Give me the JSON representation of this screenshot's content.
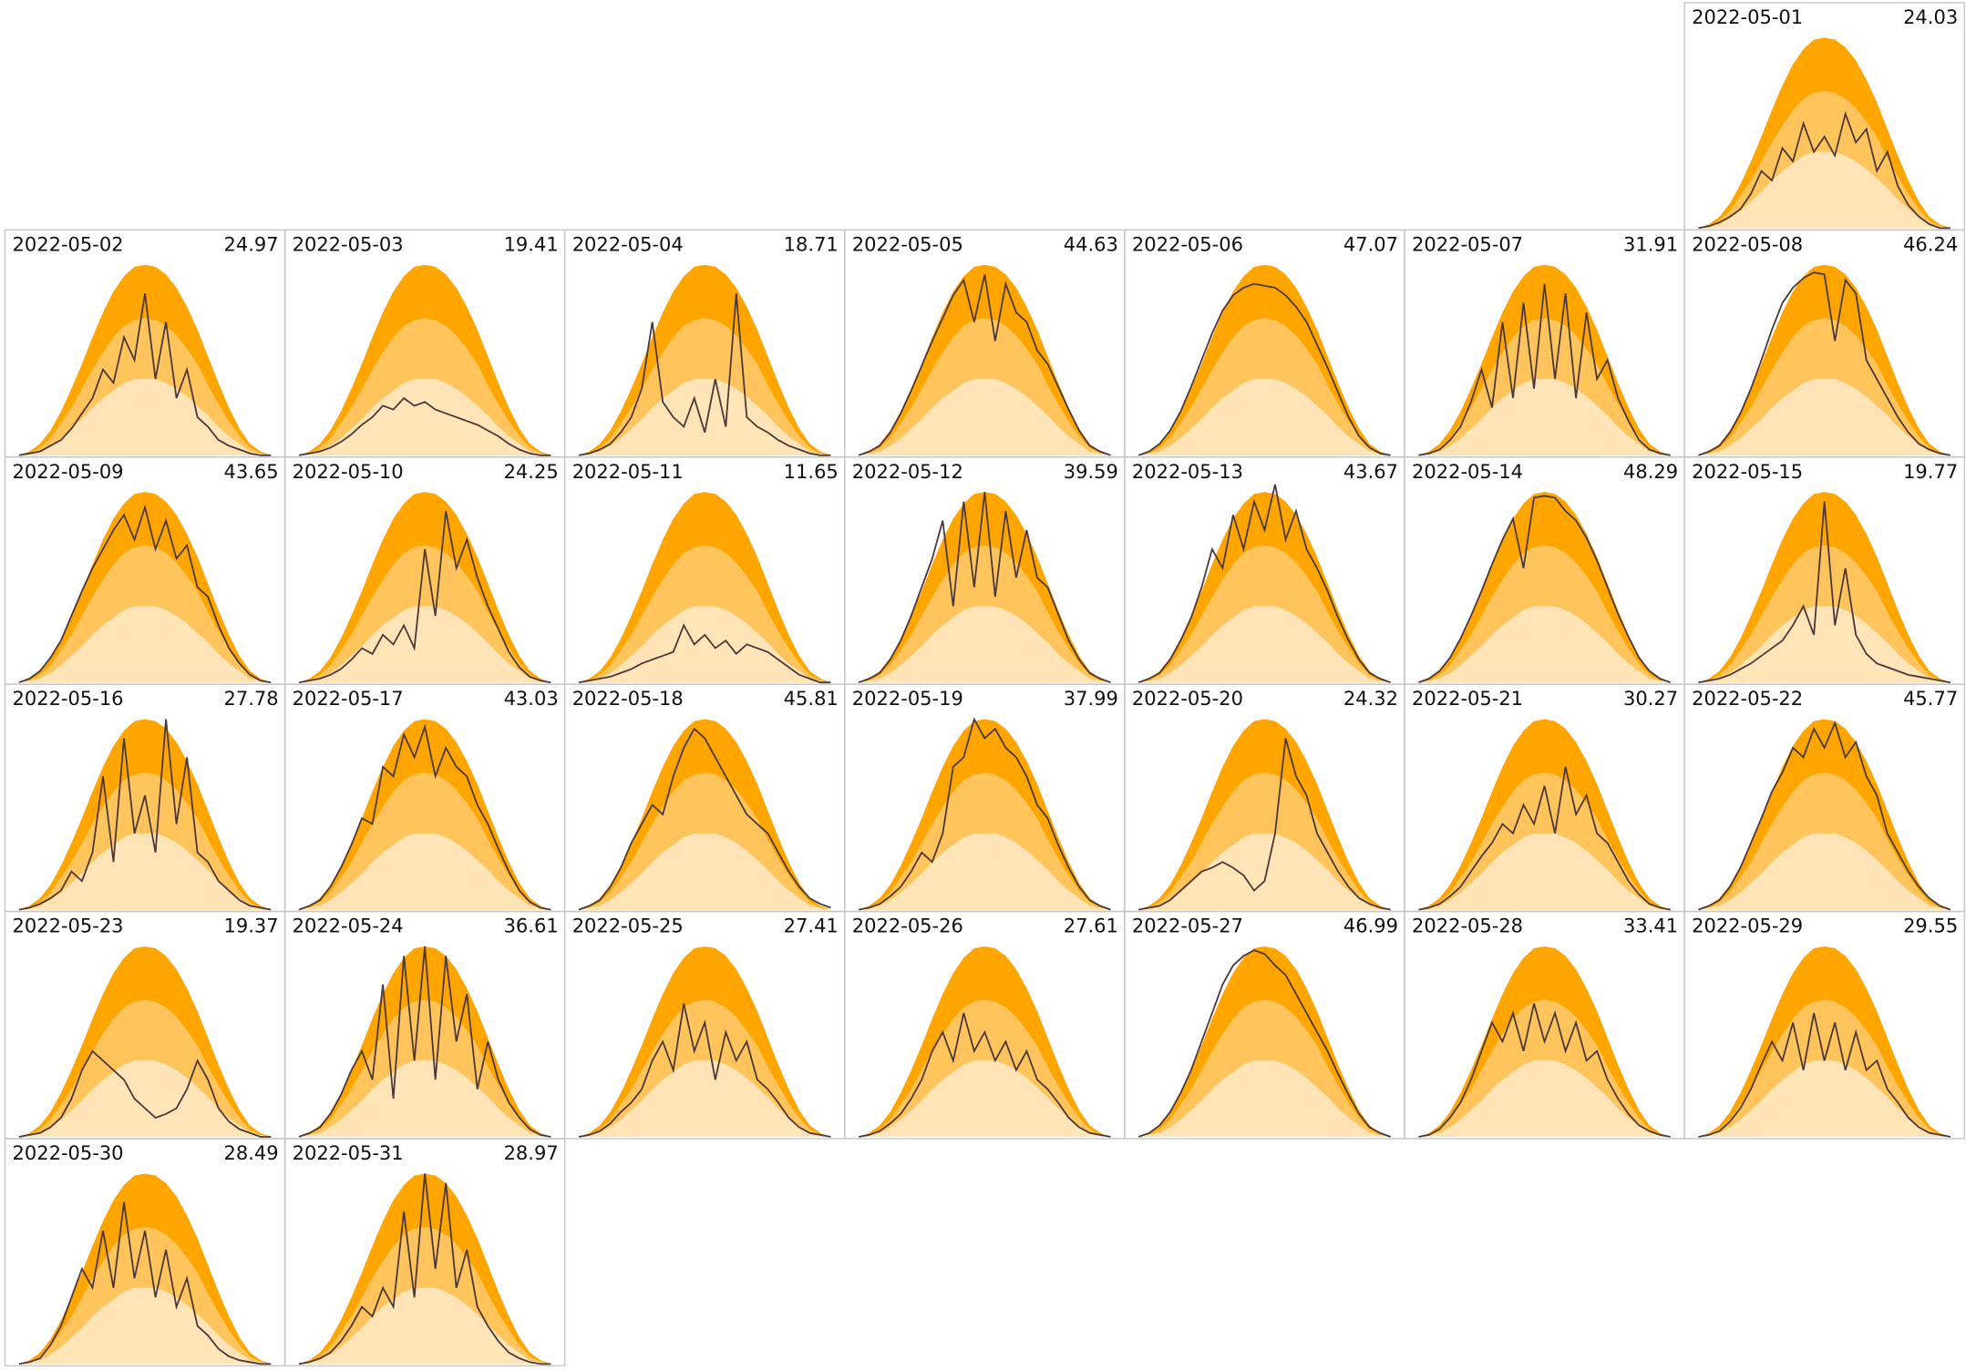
{
  "chart_data": {
    "type": "area-panels",
    "ylim": [
      0,
      110
    ],
    "line_color": "#4b3838",
    "bands": [
      {
        "color": "#ffa500",
        "values": [
          0,
          2,
          6,
          13,
          23,
          35,
          48,
          62,
          75,
          86,
          94,
          99,
          100,
          99,
          95,
          88,
          78,
          66,
          52,
          38,
          25,
          14,
          6,
          2,
          0
        ]
      },
      {
        "color": "#ffc45c",
        "values": [
          0,
          1,
          4,
          9,
          17,
          25,
          35,
          45,
          54,
          62,
          68,
          71,
          72,
          71,
          68,
          63,
          56,
          48,
          37,
          27,
          18,
          10,
          4,
          1,
          0
        ]
      },
      {
        "color": "#ffe4b8",
        "values": [
          0,
          1,
          2,
          5,
          9,
          14,
          19,
          25,
          30,
          34,
          38,
          40,
          40,
          40,
          38,
          35,
          31,
          26,
          21,
          15,
          10,
          6,
          2,
          1,
          0
        ]
      }
    ],
    "panels": [
      {
        "date": "2022-05-01",
        "total": 24.03,
        "values": [
          0,
          1,
          3,
          6,
          10,
          18,
          30,
          25,
          42,
          35,
          55,
          40,
          48,
          38,
          60,
          45,
          52,
          30,
          40,
          22,
          12,
          6,
          2,
          0,
          0
        ]
      },
      {
        "date": "2022-05-02",
        "total": 24.97,
        "values": [
          0,
          1,
          2,
          5,
          8,
          14,
          22,
          30,
          45,
          38,
          62,
          50,
          85,
          40,
          70,
          30,
          45,
          20,
          15,
          8,
          5,
          3,
          1,
          0,
          0
        ]
      },
      {
        "date": "2022-05-03",
        "total": 19.41,
        "values": [
          0,
          1,
          2,
          4,
          7,
          11,
          16,
          20,
          26,
          24,
          30,
          26,
          28,
          24,
          22,
          20,
          18,
          16,
          13,
          10,
          6,
          3,
          1,
          0,
          0
        ]
      },
      {
        "date": "2022-05-04",
        "total": 18.71,
        "values": [
          0,
          1,
          3,
          6,
          12,
          20,
          35,
          70,
          28,
          20,
          15,
          30,
          12,
          40,
          15,
          85,
          20,
          15,
          12,
          8,
          5,
          3,
          1,
          0,
          0
        ]
      },
      {
        "date": "2022-05-05",
        "total": 44.63,
        "values": [
          0,
          2,
          5,
          12,
          22,
          34,
          47,
          60,
          72,
          84,
          92,
          70,
          95,
          60,
          90,
          75,
          70,
          55,
          48,
          36,
          24,
          13,
          5,
          2,
          0
        ]
      },
      {
        "date": "2022-05-06",
        "total": 47.07,
        "values": [
          0,
          2,
          6,
          13,
          23,
          36,
          50,
          64,
          76,
          84,
          88,
          90,
          89,
          88,
          84,
          78,
          70,
          58,
          46,
          33,
          20,
          10,
          4,
          1,
          0
        ]
      },
      {
        "date": "2022-05-07",
        "total": 31.91,
        "values": [
          0,
          1,
          3,
          8,
          15,
          28,
          45,
          25,
          70,
          30,
          80,
          35,
          90,
          40,
          85,
          30,
          75,
          40,
          50,
          30,
          18,
          8,
          3,
          1,
          0
        ]
      },
      {
        "date": "2022-05-08",
        "total": 46.24,
        "values": [
          0,
          2,
          5,
          12,
          22,
          35,
          50,
          66,
          80,
          88,
          93,
          96,
          95,
          60,
          92,
          85,
          50,
          40,
          30,
          20,
          12,
          6,
          3,
          1,
          0
        ]
      },
      {
        "date": "2022-05-09",
        "total": 43.65,
        "values": [
          0,
          2,
          6,
          13,
          22,
          35,
          48,
          60,
          70,
          80,
          88,
          75,
          92,
          70,
          85,
          65,
          72,
          50,
          45,
          30,
          18,
          10,
          4,
          1,
          0
        ]
      },
      {
        "date": "2022-05-10",
        "total": 24.25,
        "values": [
          0,
          1,
          2,
          4,
          7,
          12,
          18,
          15,
          25,
          20,
          30,
          18,
          70,
          35,
          90,
          60,
          75,
          55,
          40,
          28,
          16,
          8,
          3,
          1,
          0
        ]
      },
      {
        "date": "2022-05-11",
        "total": 11.65,
        "values": [
          0,
          1,
          2,
          3,
          5,
          7,
          10,
          12,
          14,
          16,
          30,
          20,
          25,
          18,
          22,
          15,
          20,
          18,
          16,
          12,
          8,
          4,
          2,
          0,
          0
        ]
      },
      {
        "date": "2022-05-12",
        "total": 39.59,
        "values": [
          0,
          2,
          5,
          12,
          22,
          35,
          50,
          65,
          85,
          40,
          95,
          50,
          100,
          45,
          90,
          55,
          80,
          55,
          50,
          36,
          22,
          12,
          5,
          2,
          0
        ]
      },
      {
        "date": "2022-05-13",
        "total": 43.67,
        "values": [
          0,
          2,
          5,
          12,
          22,
          34,
          50,
          70,
          60,
          88,
          70,
          95,
          80,
          104,
          75,
          90,
          70,
          60,
          48,
          34,
          22,
          12,
          5,
          2,
          0
        ]
      },
      {
        "date": "2022-05-14",
        "total": 48.29,
        "values": [
          0,
          2,
          6,
          13,
          23,
          35,
          48,
          62,
          75,
          86,
          60,
          97,
          98,
          97,
          90,
          85,
          76,
          64,
          50,
          36,
          24,
          13,
          6,
          2,
          0
        ]
      },
      {
        "date": "2022-05-15",
        "total": 19.77,
        "values": [
          0,
          1,
          2,
          4,
          7,
          10,
          14,
          18,
          22,
          30,
          40,
          25,
          95,
          30,
          60,
          25,
          15,
          10,
          8,
          6,
          4,
          3,
          2,
          1,
          0
        ]
      },
      {
        "date": "2022-05-16",
        "total": 27.78,
        "values": [
          0,
          1,
          3,
          6,
          10,
          20,
          15,
          30,
          70,
          25,
          90,
          40,
          60,
          30,
          100,
          45,
          80,
          30,
          25,
          15,
          10,
          5,
          2,
          1,
          0
        ]
      },
      {
        "date": "2022-05-17",
        "total": 43.03,
        "values": [
          0,
          2,
          5,
          12,
          22,
          34,
          48,
          45,
          75,
          70,
          92,
          80,
          96,
          70,
          85,
          75,
          70,
          55,
          45,
          32,
          20,
          10,
          4,
          1,
          0
        ]
      },
      {
        "date": "2022-05-18",
        "total": 45.81,
        "values": [
          0,
          2,
          5,
          12,
          22,
          35,
          45,
          55,
          50,
          70,
          85,
          95,
          90,
          80,
          70,
          60,
          50,
          45,
          40,
          30,
          20,
          12,
          6,
          3,
          1
        ]
      },
      {
        "date": "2022-05-19",
        "total": 37.99,
        "values": [
          0,
          1,
          3,
          7,
          12,
          20,
          30,
          25,
          40,
          75,
          80,
          100,
          90,
          95,
          85,
          80,
          70,
          55,
          48,
          34,
          22,
          12,
          5,
          2,
          0
        ]
      },
      {
        "date": "2022-05-20",
        "total": 24.32,
        "values": [
          0,
          1,
          2,
          5,
          10,
          15,
          20,
          22,
          25,
          22,
          18,
          10,
          15,
          40,
          90,
          70,
          60,
          40,
          30,
          20,
          12,
          6,
          3,
          1,
          0
        ]
      },
      {
        "date": "2022-05-21",
        "total": 30.27,
        "values": [
          0,
          1,
          3,
          7,
          12,
          20,
          28,
          35,
          45,
          40,
          55,
          45,
          65,
          40,
          75,
          50,
          60,
          40,
          35,
          25,
          15,
          8,
          3,
          1,
          0
        ]
      },
      {
        "date": "2022-05-22",
        "total": 45.77,
        "values": [
          0,
          2,
          5,
          12,
          22,
          35,
          48,
          62,
          72,
          85,
          80,
          95,
          85,
          98,
          80,
          88,
          70,
          60,
          40,
          30,
          20,
          12,
          6,
          2,
          0
        ]
      },
      {
        "date": "2022-05-23",
        "total": 19.37,
        "values": [
          0,
          1,
          2,
          5,
          10,
          20,
          35,
          45,
          40,
          35,
          30,
          20,
          15,
          10,
          12,
          15,
          25,
          40,
          30,
          15,
          8,
          4,
          2,
          0,
          0
        ]
      },
      {
        "date": "2022-05-24",
        "total": 36.61,
        "values": [
          0,
          2,
          5,
          12,
          22,
          35,
          45,
          30,
          80,
          20,
          95,
          40,
          100,
          30,
          95,
          50,
          75,
          25,
          50,
          30,
          18,
          10,
          4,
          1,
          0
        ]
      },
      {
        "date": "2022-05-25",
        "total": 27.41,
        "values": [
          0,
          1,
          3,
          7,
          13,
          18,
          25,
          40,
          50,
          35,
          70,
          45,
          60,
          30,
          55,
          40,
          50,
          30,
          25,
          18,
          10,
          5,
          2,
          1,
          0
        ]
      },
      {
        "date": "2022-05-26",
        "total": 27.61,
        "values": [
          0,
          1,
          3,
          7,
          12,
          20,
          30,
          45,
          55,
          40,
          65,
          45,
          55,
          40,
          50,
          35,
          45,
          30,
          25,
          18,
          10,
          5,
          2,
          1,
          0
        ]
      },
      {
        "date": "2022-05-27",
        "total": 46.99,
        "values": [
          0,
          2,
          6,
          13,
          23,
          35,
          50,
          65,
          80,
          90,
          95,
          98,
          96,
          90,
          85,
          75,
          65,
          55,
          45,
          33,
          22,
          12,
          5,
          2,
          0
        ]
      },
      {
        "date": "2022-05-28",
        "total": 33.41,
        "values": [
          0,
          1,
          4,
          10,
          18,
          30,
          45,
          60,
          50,
          65,
          45,
          70,
          50,
          65,
          45,
          60,
          40,
          45,
          30,
          20,
          12,
          6,
          3,
          1,
          0
        ]
      },
      {
        "date": "2022-05-29",
        "total": 29.55,
        "values": [
          0,
          1,
          3,
          8,
          15,
          25,
          38,
          50,
          40,
          60,
          35,
          65,
          40,
          60,
          35,
          55,
          35,
          40,
          25,
          18,
          10,
          5,
          2,
          1,
          0
        ]
      },
      {
        "date": "2022-05-30",
        "total": 28.49,
        "values": [
          0,
          1,
          3,
          10,
          20,
          35,
          50,
          40,
          70,
          40,
          85,
          45,
          70,
          35,
          60,
          30,
          45,
          20,
          15,
          8,
          4,
          2,
          1,
          0,
          0
        ]
      },
      {
        "date": "2022-05-31",
        "total": 28.97,
        "values": [
          0,
          1,
          3,
          6,
          12,
          20,
          30,
          25,
          40,
          30,
          80,
          35,
          100,
          50,
          95,
          40,
          60,
          30,
          20,
          12,
          6,
          3,
          1,
          0,
          0
        ]
      }
    ]
  }
}
